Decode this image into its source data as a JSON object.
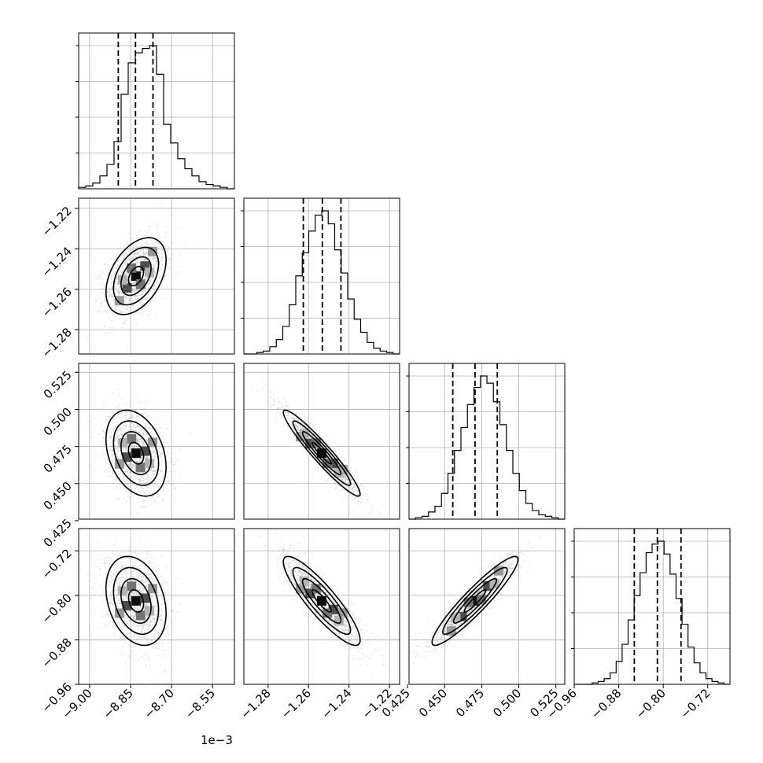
{
  "chart_data": {
    "type": "corner",
    "parameters": [
      {
        "range": [
          -0.00904,
          -0.00847
        ],
        "ticks": [
          -0.009,
          -0.00885,
          -0.0087,
          -0.00855
        ],
        "tick_labels": [
          "−9.00",
          "−8.85",
          "−8.70",
          "−8.55"
        ],
        "offset_text": "1e−3",
        "quantiles": [
          -0.008895,
          -0.008832,
          -0.008768
        ],
        "hist_counts": [
          1,
          2,
          4,
          9,
          17,
          33,
          66,
          88,
          95,
          98,
          100,
          80,
          45,
          32,
          21,
          14,
          9,
          5,
          3,
          2,
          1,
          0
        ],
        "std": 5.5e-05,
        "mean": -0.00883
      },
      {
        "range": [
          -1.292,
          -1.215
        ],
        "ticks": [
          -1.28,
          -1.26,
          -1.24,
          -1.22
        ],
        "tick_labels": [
          "−1.28",
          "−1.26",
          "−1.24",
          "−1.22"
        ],
        "quantiles": [
          -1.2626,
          -1.2532,
          -1.244
        ],
        "hist_counts": [
          0,
          0,
          1,
          2,
          5,
          10,
          19,
          34,
          54,
          70,
          85,
          96,
          99,
          90,
          72,
          56,
          38,
          24,
          15,
          8,
          4,
          2,
          1,
          0
        ],
        "std": 0.0095,
        "mean": -1.2535
      },
      {
        "range": [
          0.426,
          0.531
        ],
        "ticks": [
          0.425,
          0.45,
          0.475,
          0.5,
          0.525
        ],
        "tick_labels": [
          "0.425",
          "0.450",
          "0.475",
          "0.500",
          "0.525"
        ],
        "quantiles": [
          0.4555,
          0.4705,
          0.4855
        ],
        "hist_counts": [
          0,
          1,
          2,
          5,
          9,
          18,
          32,
          48,
          64,
          80,
          92,
          100,
          95,
          82,
          66,
          48,
          32,
          20,
          11,
          6,
          3,
          2,
          1,
          0
        ],
        "std": 0.0145,
        "mean": 0.4705
      },
      {
        "range": [
          -0.96,
          -0.68
        ],
        "ticks": [
          -0.96,
          -0.88,
          -0.8,
          -0.72
        ],
        "tick_labels": [
          "−0.96",
          "−0.88",
          "−0.80",
          "−0.72"
        ],
        "quantiles": [
          -0.852,
          -0.8105,
          -0.768
        ],
        "hist_counts": [
          0,
          0,
          0,
          1,
          2,
          4,
          8,
          16,
          28,
          45,
          62,
          78,
          92,
          98,
          100,
          91,
          77,
          60,
          42,
          26,
          15,
          8,
          4,
          2,
          1,
          0
        ],
        "std": 0.04,
        "mean": -0.81
      }
    ],
    "correlations": [
      [
        1.0,
        0.42,
        -0.32,
        -0.28
      ],
      [
        0.42,
        1.0,
        -0.95,
        -0.88
      ],
      [
        -0.32,
        -0.95,
        1.0,
        0.93
      ],
      [
        -0.28,
        -0.88,
        0.93,
        1.0
      ]
    ],
    "contour_levels_sigma": [
      0.5,
      1.0,
      1.5,
      2.0
    ],
    "xlabel": "",
    "ylabel": "",
    "title": ""
  }
}
